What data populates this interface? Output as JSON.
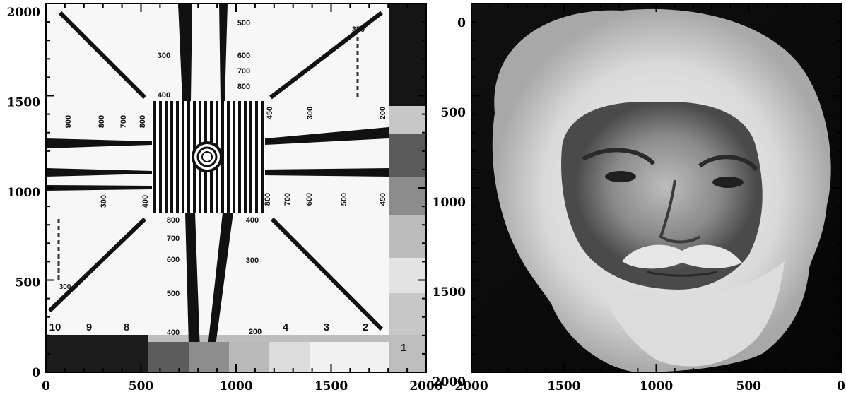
{
  "left_panel": {
    "x_ticks": [
      "0",
      "500",
      "1000",
      "1500",
      "2000"
    ],
    "y_ticks": [
      "0",
      "500",
      "1000",
      "1500",
      "2000"
    ],
    "chart_labels": {
      "top": [
        "500",
        "300",
        "600",
        "700",
        "800",
        "400"
      ],
      "top_right": "350",
      "horiz_left": [
        "900",
        "800",
        "700",
        "800"
      ],
      "horiz_right": [
        "450",
        "300",
        "200"
      ],
      "vert_left": [
        "300",
        "400"
      ],
      "vert_right": [
        "800",
        "700",
        "600",
        "500",
        "450"
      ],
      "bottom": [
        "800",
        "700",
        "600",
        "500",
        "400",
        "400",
        "300",
        "200"
      ],
      "left_mark": "300",
      "digits": [
        "10",
        "9",
        "8",
        "4",
        "3",
        "2",
        "1"
      ]
    }
  },
  "right_panel": {
    "x_ticks": [
      "2000",
      "1500",
      "1000",
      "500",
      "0"
    ],
    "y_ticks": [
      "0",
      "500",
      "1000",
      "1500",
      "2000"
    ]
  }
}
